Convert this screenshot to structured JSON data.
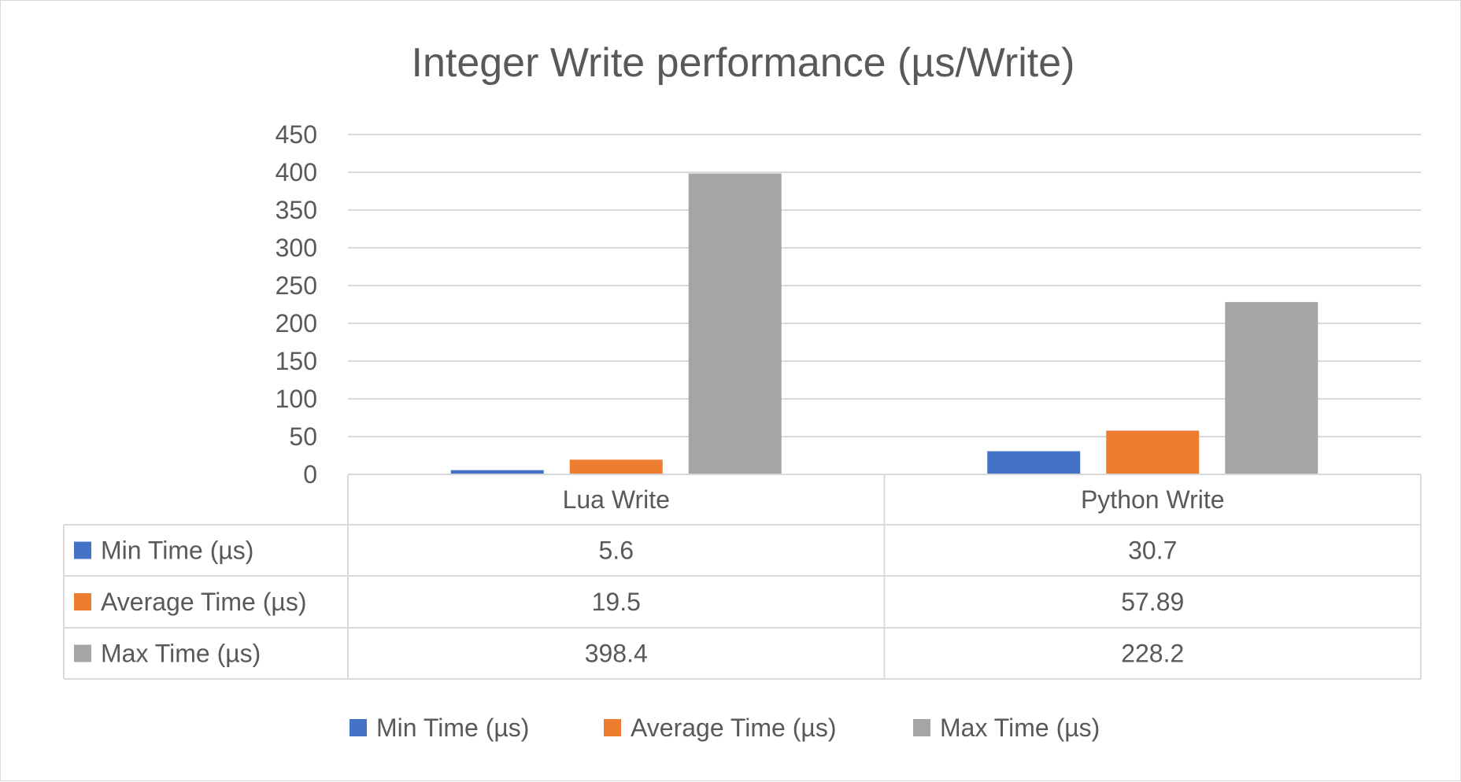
{
  "chart_data": {
    "type": "bar",
    "title": "Integer Write performance (µs/Write)",
    "xlabel": "",
    "ylabel": "",
    "ylim": [
      0,
      450
    ],
    "yticks": [
      0,
      50,
      100,
      150,
      200,
      250,
      300,
      350,
      400,
      450
    ],
    "grid": true,
    "legend_position": "bottom",
    "data_table": true,
    "categories": [
      "Lua Write",
      "Python Write"
    ],
    "series": [
      {
        "name": "Min Time (µs)",
        "color": "#4472c4",
        "values": [
          5.6,
          30.7
        ],
        "value_labels": [
          "5.6",
          "30.7"
        ]
      },
      {
        "name": "Average Time (µs)",
        "color": "#ed7d31",
        "values": [
          19.5,
          57.89
        ],
        "value_labels": [
          "19.5",
          "57.89"
        ]
      },
      {
        "name": "Max Time (µs)",
        "color": "#a5a5a5",
        "values": [
          398.4,
          228.2
        ],
        "value_labels": [
          "398.4",
          "228.2"
        ]
      }
    ]
  }
}
